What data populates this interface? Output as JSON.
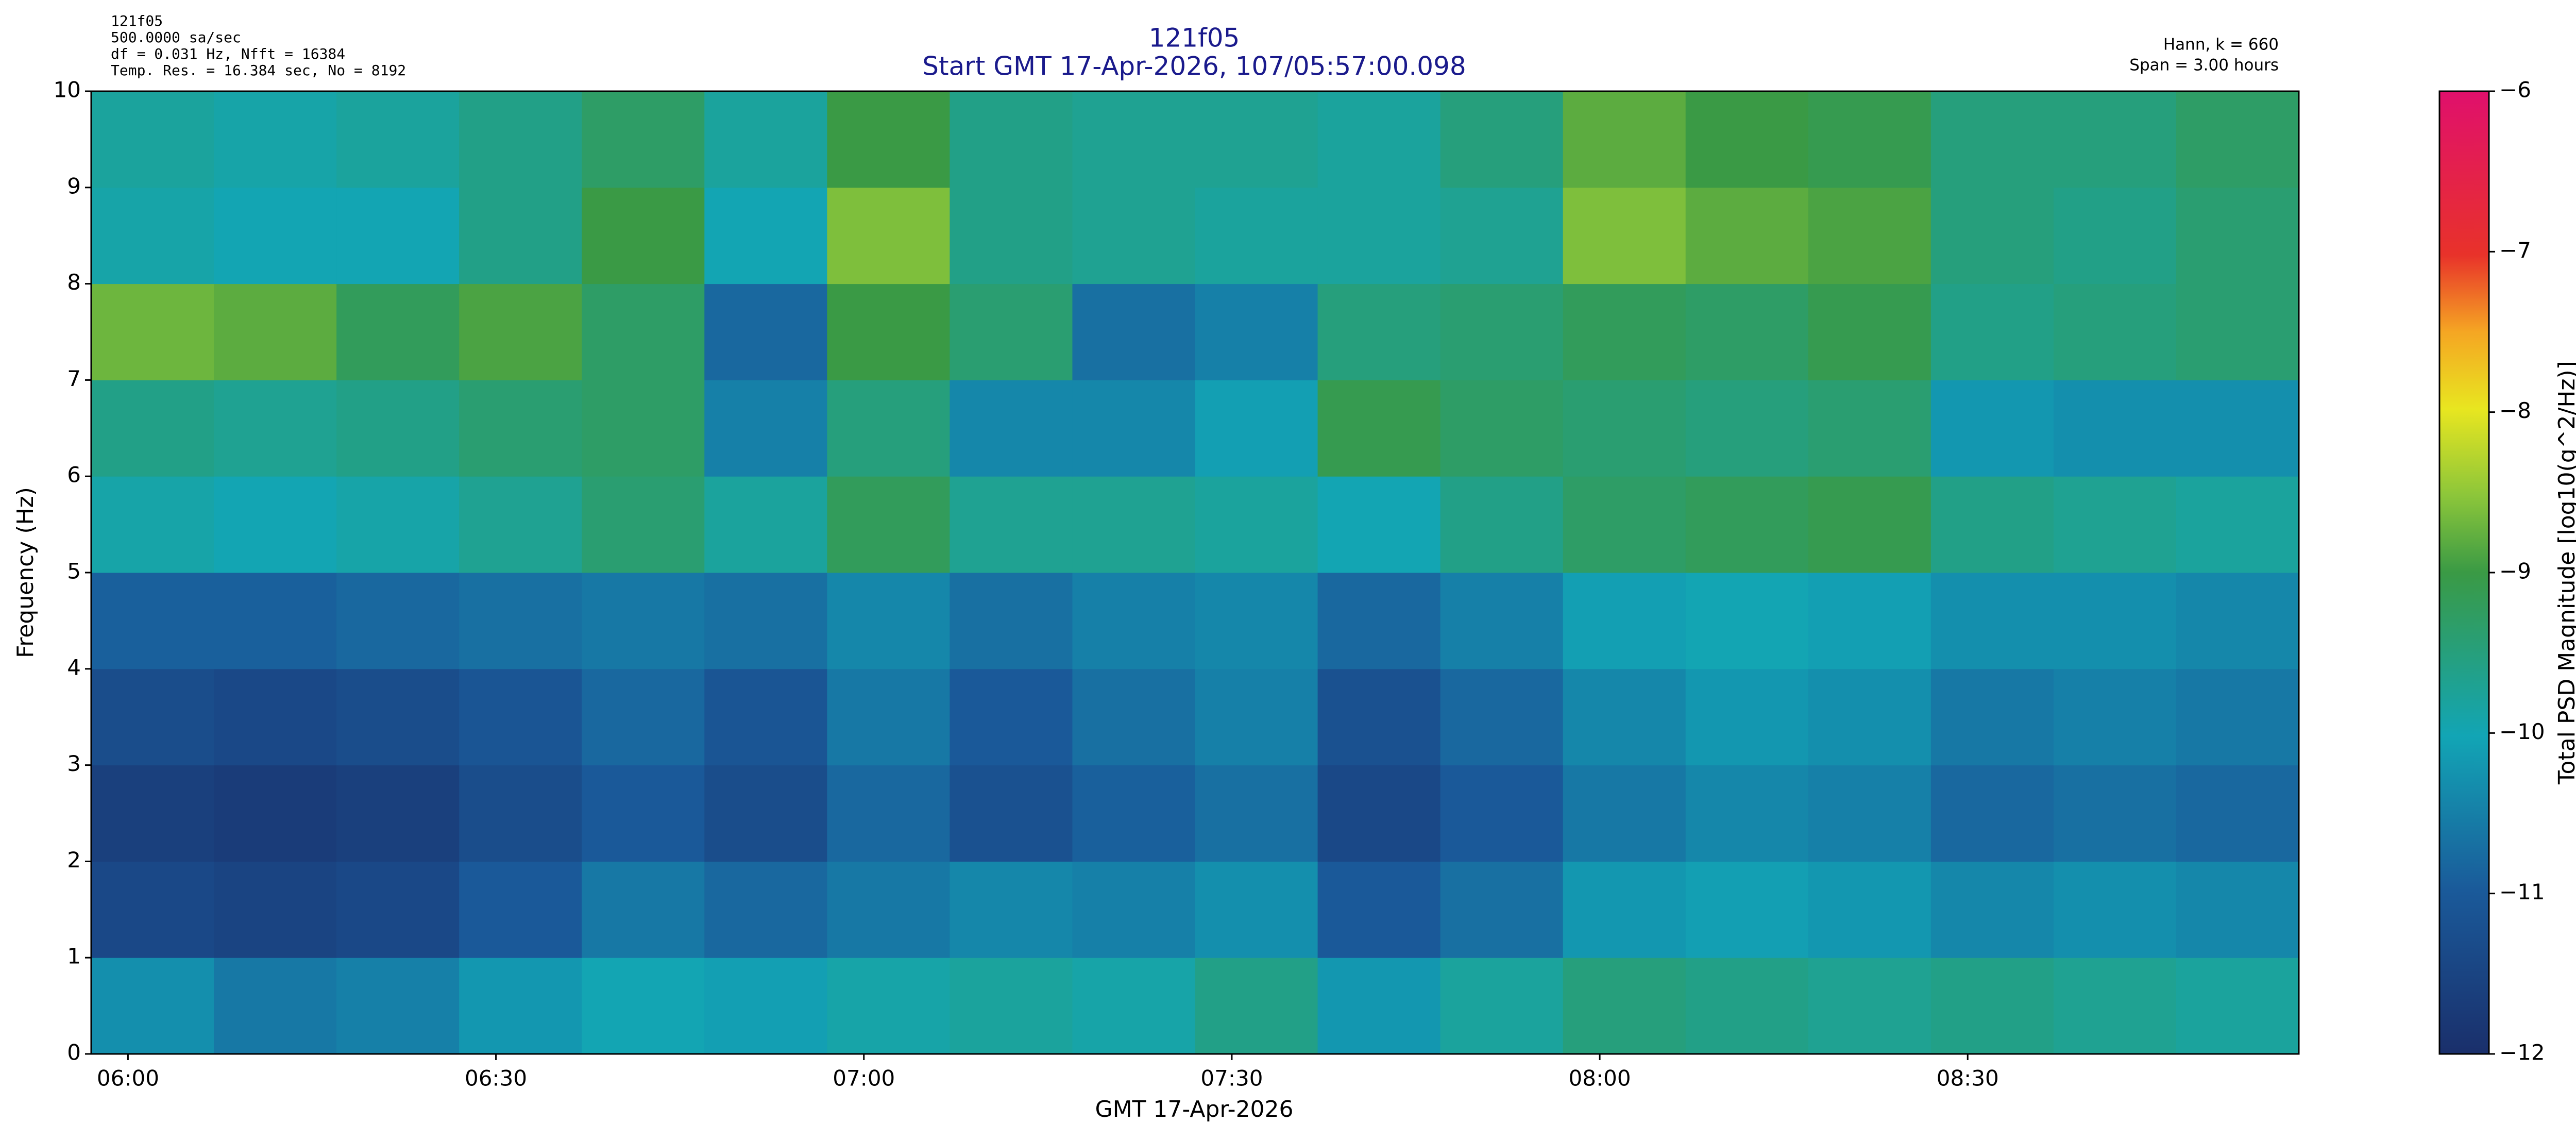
{
  "chart_data": {
    "type": "heatmap",
    "title": "121f05",
    "subtitle": "Start GMT 17-Apr-2026, 107/05:57:00.098",
    "info_left": [
      "121f05",
      "500.0000 sa/sec",
      "df = 0.031 Hz,  Nfft = 16384",
      "Temp. Res. = 16.384 sec, No = 8192"
    ],
    "info_right": [
      "Hann, k = 660",
      "Span = 3.00 hours"
    ],
    "x_label": "GMT 17-Apr-2026",
    "y_label": "Frequency (Hz)",
    "colorbar_label": "Total PSD Magnitude [log10(g^2/Hz)]",
    "x": [
      "05:57",
      "06:07",
      "06:17",
      "06:27",
      "06:37",
      "06:47",
      "06:57",
      "07:07",
      "07:17",
      "07:27",
      "07:37",
      "07:47",
      "07:57",
      "08:07",
      "08:17",
      "08:27",
      "08:37",
      "08:47"
    ],
    "xlim": [
      "05:57",
      "08:57"
    ],
    "xticks": [
      "06:00",
      "06:30",
      "07:00",
      "07:30",
      "08:00",
      "08:30"
    ],
    "y": [
      0,
      1,
      2,
      3,
      4,
      5,
      6,
      7,
      8,
      9
    ],
    "ylim": [
      0,
      10
    ],
    "yticks": [
      0,
      1,
      2,
      3,
      4,
      5,
      6,
      7,
      8,
      9,
      10
    ],
    "values": [
      [
        -10.3,
        -10.6,
        -10.5,
        -10.2,
        -10,
        -10.1,
        -9.9,
        -9.8,
        -9.9,
        -9.6,
        -10.2,
        -9.8,
        -9.5,
        -9.6,
        -9.7,
        -9.6,
        -9.7,
        -9.8
      ],
      [
        -11.4,
        -11.5,
        -11.4,
        -11,
        -10.6,
        -10.8,
        -10.6,
        -10.4,
        -10.5,
        -10.3,
        -11,
        -10.7,
        -10.2,
        -10.1,
        -10.2,
        -10.4,
        -10.3,
        -10.4
      ],
      [
        -11.6,
        -11.7,
        -11.6,
        -11.3,
        -11,
        -11.3,
        -10.8,
        -11.2,
        -10.9,
        -10.7,
        -11.4,
        -11,
        -10.6,
        -10.4,
        -10.5,
        -10.8,
        -10.7,
        -10.8
      ],
      [
        -11.3,
        -11.4,
        -11.3,
        -11.1,
        -10.8,
        -11.1,
        -10.6,
        -11,
        -10.7,
        -10.5,
        -11.2,
        -10.8,
        -10.4,
        -10.2,
        -10.3,
        -10.6,
        -10.5,
        -10.6
      ],
      [
        -10.9,
        -10.9,
        -10.8,
        -10.7,
        -10.6,
        -10.7,
        -10.4,
        -10.7,
        -10.5,
        -10.4,
        -10.8,
        -10.5,
        -10.1,
        -10,
        -10.1,
        -10.3,
        -10.3,
        -10.4
      ],
      [
        -9.9,
        -10,
        -9.9,
        -9.7,
        -9.4,
        -9.8,
        -9.2,
        -9.7,
        -9.7,
        -9.8,
        -10,
        -9.6,
        -9.3,
        -9.2,
        -9.1,
        -9.6,
        -9.7,
        -9.8
      ],
      [
        -9.6,
        -9.7,
        -9.6,
        -9.4,
        -9.3,
        -10.5,
        -9.5,
        -10.4,
        -10.4,
        -10.1,
        -9.1,
        -9.3,
        -9.4,
        -9.5,
        -9.4,
        -10.2,
        -10.3,
        -10.3
      ],
      [
        -8.7,
        -8.8,
        -9.2,
        -8.9,
        -9.3,
        -10.8,
        -9,
        -9.4,
        -10.7,
        -10.5,
        -9.5,
        -9.4,
        -9.2,
        -9.3,
        -9.1,
        -9.6,
        -9.5,
        -9.4
      ],
      [
        -9.9,
        -10,
        -10,
        -9.6,
        -9,
        -10,
        -8.6,
        -9.6,
        -9.7,
        -9.8,
        -9.8,
        -9.7,
        -8.6,
        -8.8,
        -8.9,
        -9.5,
        -9.6,
        -9.4
      ],
      [
        -9.8,
        -9.9,
        -9.8,
        -9.6,
        -9.3,
        -9.8,
        -9,
        -9.6,
        -9.7,
        -9.7,
        -9.8,
        -9.5,
        -8.8,
        -9,
        -9.1,
        -9.5,
        -9.5,
        -9.3
      ]
    ],
    "clim": [
      -12,
      -6
    ],
    "cticks": [
      {
        "value": -12,
        "label": "−12"
      },
      {
        "value": -11,
        "label": "−11"
      },
      {
        "value": -10,
        "label": "−10"
      },
      {
        "value": -9,
        "label": "−9"
      },
      {
        "value": -8,
        "label": "−8"
      },
      {
        "value": -7,
        "label": "−7"
      },
      {
        "value": -6,
        "label": "−6"
      }
    ]
  }
}
